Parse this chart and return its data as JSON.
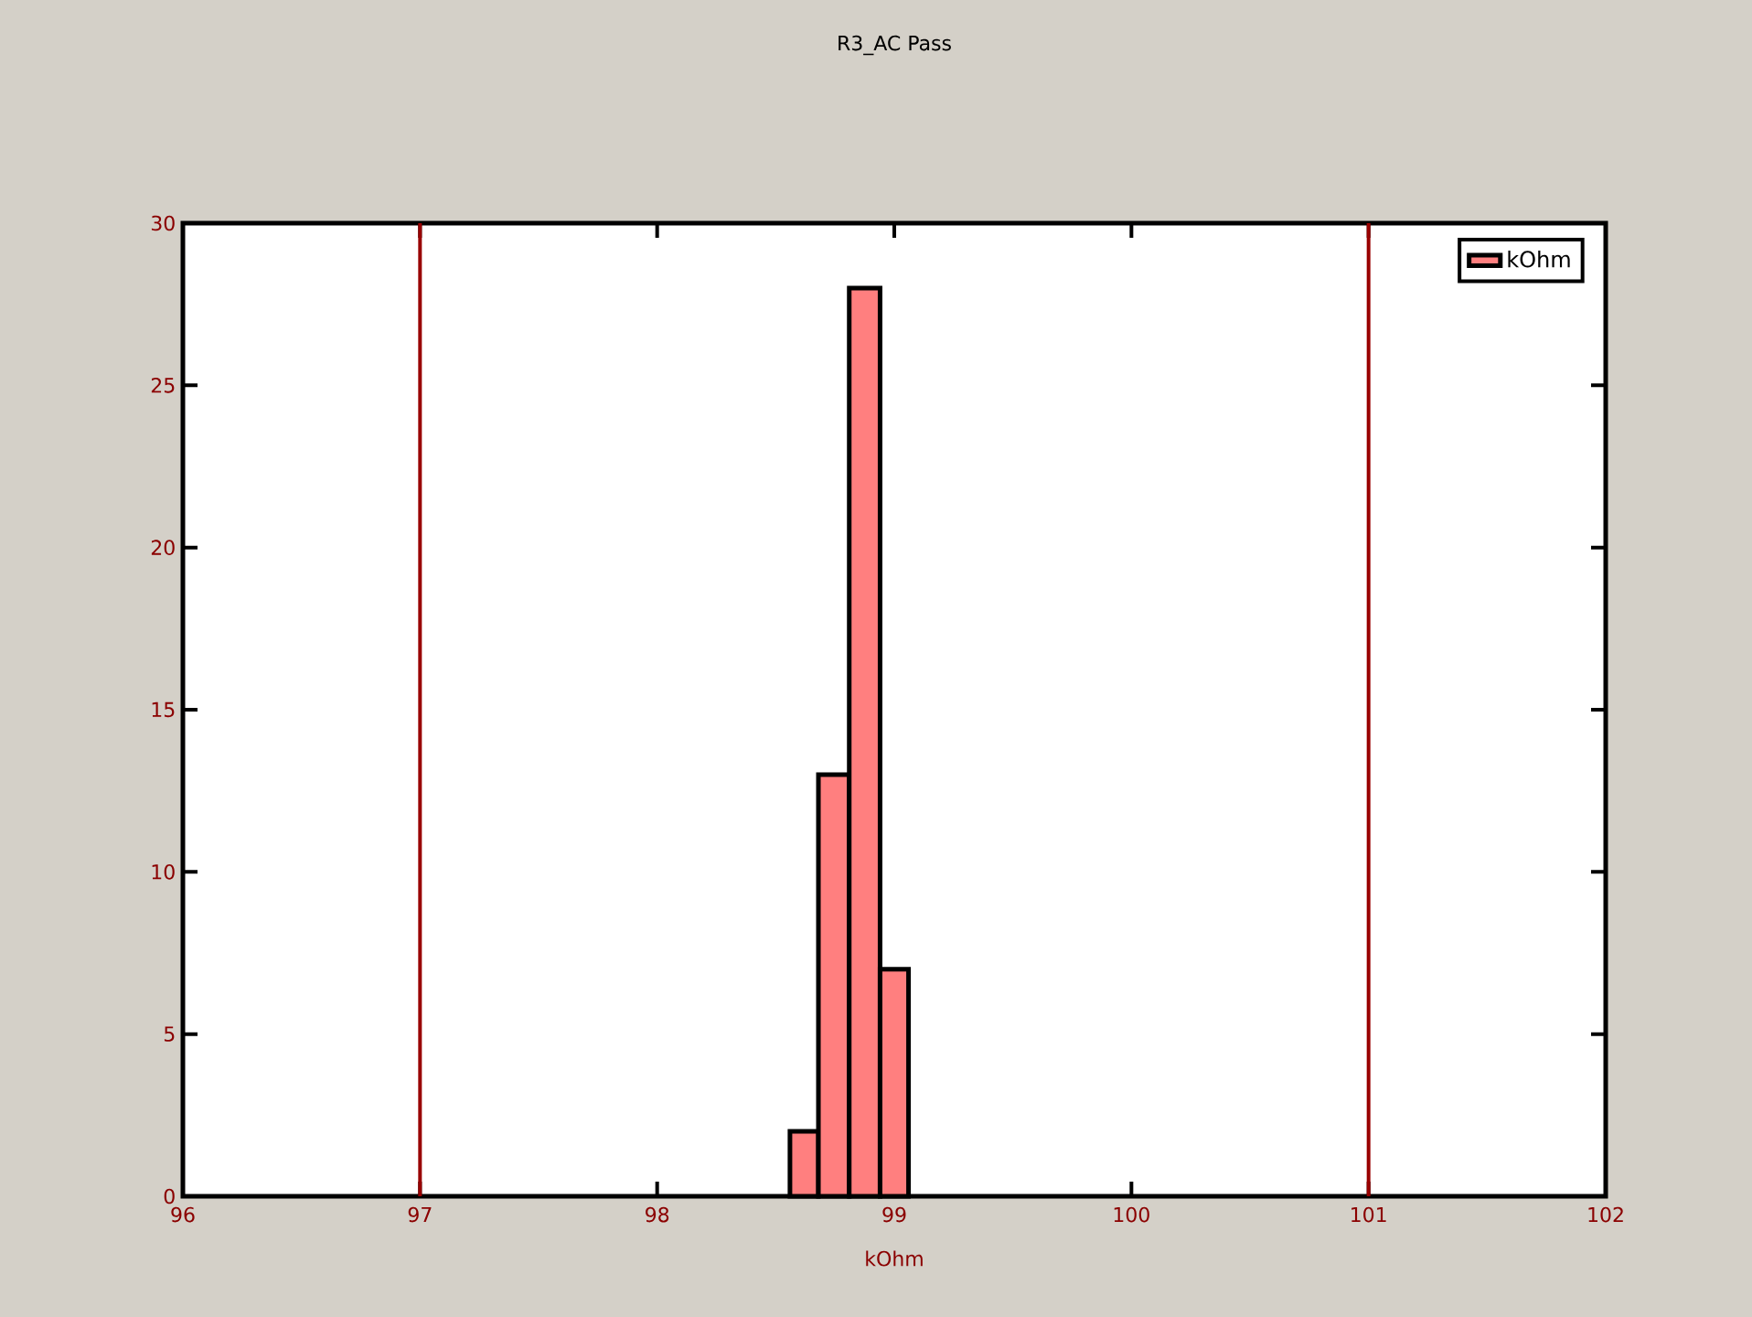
{
  "chart_data": {
    "type": "histogram",
    "title": "R3_AC Pass",
    "xlabel": "kOhm",
    "bins": [
      98.56,
      98.68,
      98.81,
      98.94,
      99.06
    ],
    "series": [
      {
        "name": "kOhm",
        "color": "#ff7f7f",
        "values": [
          2,
          13,
          28,
          7
        ]
      }
    ],
    "xlim": [
      96,
      102
    ],
    "ylim": [
      0,
      30
    ],
    "xticks": [
      96,
      97,
      98,
      99,
      100,
      101,
      102
    ],
    "yticks": [
      0,
      5,
      10,
      15,
      20,
      25,
      30
    ],
    "ref_lines": [
      {
        "axis": "x",
        "value": 97,
        "color": "#990000"
      },
      {
        "axis": "x",
        "value": 101,
        "color": "#990000"
      }
    ],
    "legend": "top right"
  }
}
